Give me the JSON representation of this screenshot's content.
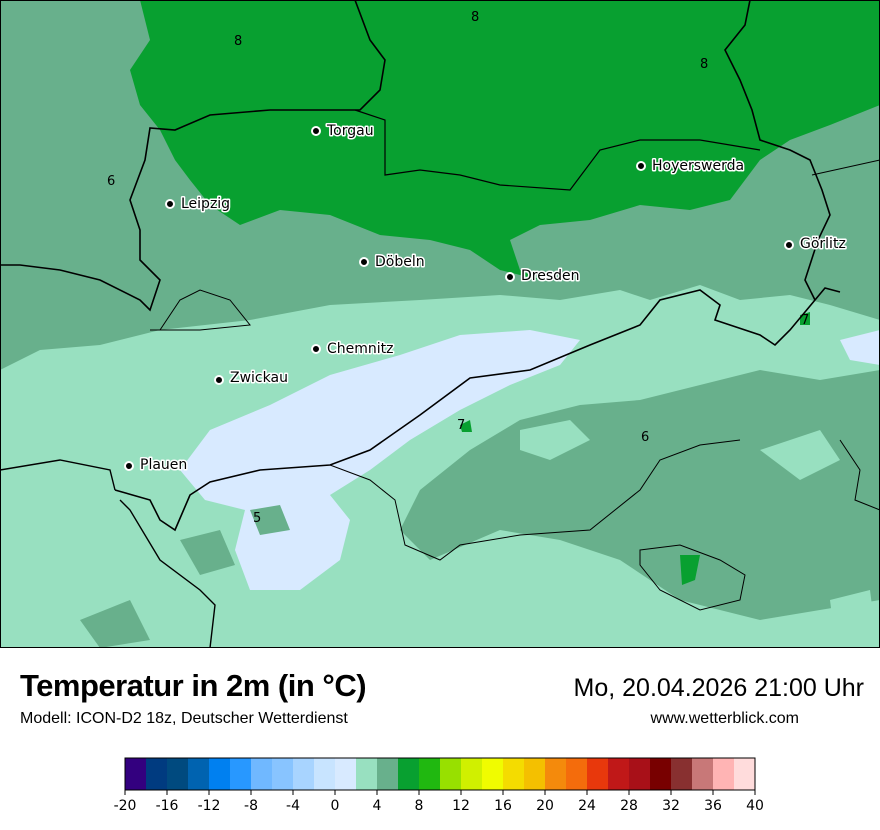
{
  "title": "Temperatur in 2m (in °C)",
  "subtitle": "Modell: ICON-D2 18z, Deutscher Wetterdienst",
  "datetime": "Mo, 20.04.2026 21:00 Uhr",
  "website": "www.wetterblick.com",
  "map": {
    "cities": [
      {
        "name": "Torgau"
      },
      {
        "name": "Hoyerswerda"
      },
      {
        "name": "Leipzig"
      },
      {
        "name": "Görlitz"
      },
      {
        "name": "Döbeln"
      },
      {
        "name": "Dresden"
      },
      {
        "name": "Chemnitz"
      },
      {
        "name": "Zwickau"
      },
      {
        "name": "Plauen"
      }
    ],
    "contour_labels": [
      "8",
      "8",
      "8",
      "6",
      "6",
      "7",
      "7",
      "5"
    ]
  },
  "colorbar": {
    "min": -20,
    "max": 40,
    "step": 2,
    "tick_labels": [
      "-20",
      "-16",
      "-12",
      "-8",
      "-4",
      "0",
      "4",
      "8",
      "12",
      "16",
      "20",
      "24",
      "28",
      "32",
      "36",
      "40"
    ],
    "colors": [
      "#33007f",
      "#003b80",
      "#004a7f",
      "#0063b0",
      "#0080f0",
      "#2898ff",
      "#70b8ff",
      "#88c4ff",
      "#a8d4ff",
      "#c8e4ff",
      "#d8eaff",
      "#98e0c0",
      "#68b08c",
      "#08a030",
      "#20b810",
      "#98e000",
      "#d0f000",
      "#f0fc00",
      "#f4dc00",
      "#f4c000",
      "#f48a0c",
      "#f46c0c",
      "#e8380c",
      "#c01818",
      "#a81018",
      "#780000",
      "#883030",
      "#c87878",
      "#ffb4b4",
      "#ffdcdc"
    ]
  }
}
